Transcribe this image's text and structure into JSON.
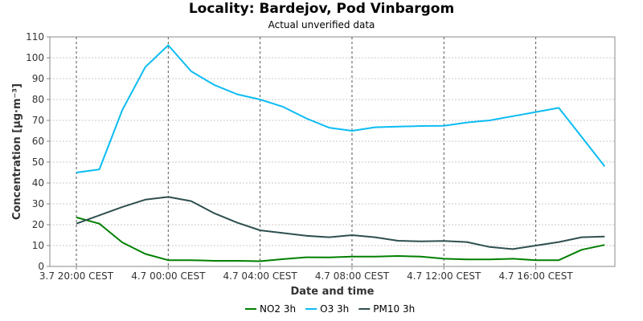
{
  "chart_data": {
    "type": "line",
    "title": "Locality: Bardejov, Pod Vinbargom",
    "subtitle": "Actual unverified data",
    "xlabel": "Date and time",
    "ylabel": "Concentration [µg·m⁻³]",
    "ylim": [
      0,
      110
    ],
    "y_ticks": [
      0,
      10,
      20,
      30,
      40,
      50,
      60,
      70,
      80,
      90,
      100,
      110
    ],
    "x": [
      "3.7 20:00",
      "3.7 21:00",
      "3.7 22:00",
      "3.7 23:00",
      "4.7 00:00",
      "4.7 01:00",
      "4.7 02:00",
      "4.7 03:00",
      "4.7 04:00",
      "4.7 05:00",
      "4.7 06:00",
      "4.7 07:00",
      "4.7 08:00",
      "4.7 09:00",
      "4.7 10:00",
      "4.7 11:00",
      "4.7 12:00",
      "4.7 13:00",
      "4.7 14:00",
      "4.7 15:00",
      "4.7 16:00",
      "4.7 17:00",
      "4.7 18:00",
      "4.7 19:00"
    ],
    "x_ticks": [
      {
        "index": 0,
        "label": "3.7 20:00 CEST"
      },
      {
        "index": 4,
        "label": "4.7 00:00 CEST"
      },
      {
        "index": 8,
        "label": "4.7 04:00 CEST"
      },
      {
        "index": 12,
        "label": "4.7 08:00 CEST"
      },
      {
        "index": 16,
        "label": "4.7 12:00 CEST"
      },
      {
        "index": 20,
        "label": "4.7 16:00 CEST"
      }
    ],
    "series": [
      {
        "name": "NO2 3h",
        "color": "#008000",
        "values": [
          23.5,
          20.5,
          11.5,
          6.0,
          3.0,
          3.0,
          2.7,
          2.7,
          2.5,
          3.5,
          4.4,
          4.3,
          4.7,
          4.7,
          5.0,
          4.7,
          3.7,
          3.4,
          3.4,
          3.7,
          3.0,
          3.0,
          8.0,
          10.3
        ]
      },
      {
        "name": "O3 3h",
        "color": "#0bbcf2",
        "values": [
          45.0,
          46.5,
          75.0,
          95.5,
          106.0,
          93.5,
          87.0,
          82.5,
          80.0,
          76.5,
          71.0,
          66.5,
          65.0,
          66.7,
          67.0,
          67.3,
          67.4,
          69.0,
          70.0,
          72.0,
          74.0,
          76.0,
          62.0,
          48.0
        ]
      },
      {
        "name": "PM10 3h",
        "color": "#2f4f4f",
        "values": [
          20.5,
          24.5,
          28.5,
          32.0,
          33.3,
          31.3,
          25.5,
          21.0,
          17.3,
          16.0,
          14.7,
          14.0,
          15.0,
          14.0,
          12.3,
          12.0,
          12.2,
          11.7,
          9.3,
          8.3,
          10.0,
          11.7,
          14.0,
          14.3
        ]
      }
    ],
    "grid": true,
    "legend_position": "bottom-center"
  }
}
